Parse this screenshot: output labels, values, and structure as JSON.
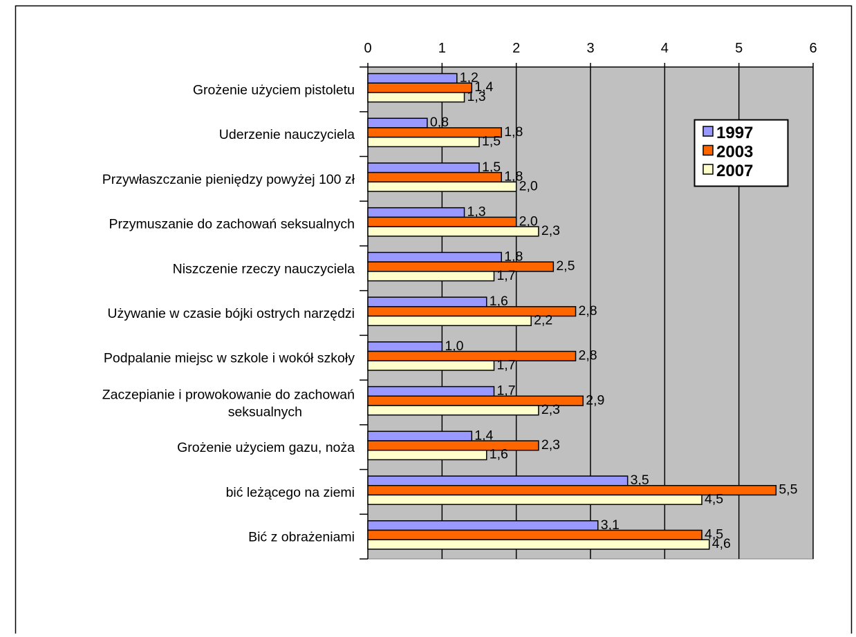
{
  "chart_data": {
    "type": "bar",
    "orientation": "horizontal",
    "categories": [
      "Grożenie użyciem pistoletu",
      "Uderzenie nauczyciela",
      "Przywłaszczanie pieniędzy powyżej 100 zł",
      "Przymuszanie do zachowań seksualnych",
      "Niszczenie rzeczy nauczyciela",
      "Używanie w czasie  bójki ostrych narzędzi",
      "Podpalanie miejsc w szkole i wokół szkoły",
      "Zaczepianie i prowokowanie do zachowań seksualnych",
      "Grożenie użyciem gazu, noża",
      "bić leżącego na ziemi",
      "Bić z obrażeniami"
    ],
    "series": [
      {
        "name": "1997",
        "color": "#9999ff",
        "values": [
          1.2,
          0.8,
          1.5,
          1.3,
          1.8,
          1.6,
          1.0,
          1.7,
          1.4,
          3.5,
          3.1
        ],
        "labels": [
          "1,2",
          "0,8",
          "1,5",
          "1,3",
          "1,8",
          "1,6",
          "1,0",
          "1,7",
          "1,4",
          "3,5",
          "3,1"
        ]
      },
      {
        "name": "2003",
        "color": "#ff6600",
        "values": [
          1.4,
          1.8,
          1.8,
          2.0,
          2.5,
          2.8,
          2.8,
          2.9,
          2.3,
          5.5,
          4.5
        ],
        "labels": [
          "1,4",
          "1,8",
          "1,8",
          "2,0",
          "2,5",
          "2,8",
          "2,8",
          "2,9",
          "2,3",
          "5,5",
          "4,5"
        ]
      },
      {
        "name": "2007",
        "color": "#ffffcc",
        "values": [
          1.3,
          1.5,
          2.0,
          2.3,
          1.7,
          2.2,
          1.7,
          2.3,
          1.6,
          4.5,
          4.6
        ],
        "labels": [
          "1,3",
          "1,5",
          "2,0",
          "2,3",
          "1,7",
          "2,2",
          "1,7",
          "2,3",
          "1,6",
          "4,5",
          "4,6"
        ]
      }
    ],
    "xlim": [
      0,
      6
    ],
    "x_ticks": [
      "0",
      "1",
      "2",
      "3",
      "4",
      "5",
      "6"
    ],
    "x_axis_position": "top",
    "grid": true,
    "plot_background": "#c0c0c0",
    "legend_position": "top-right"
  }
}
